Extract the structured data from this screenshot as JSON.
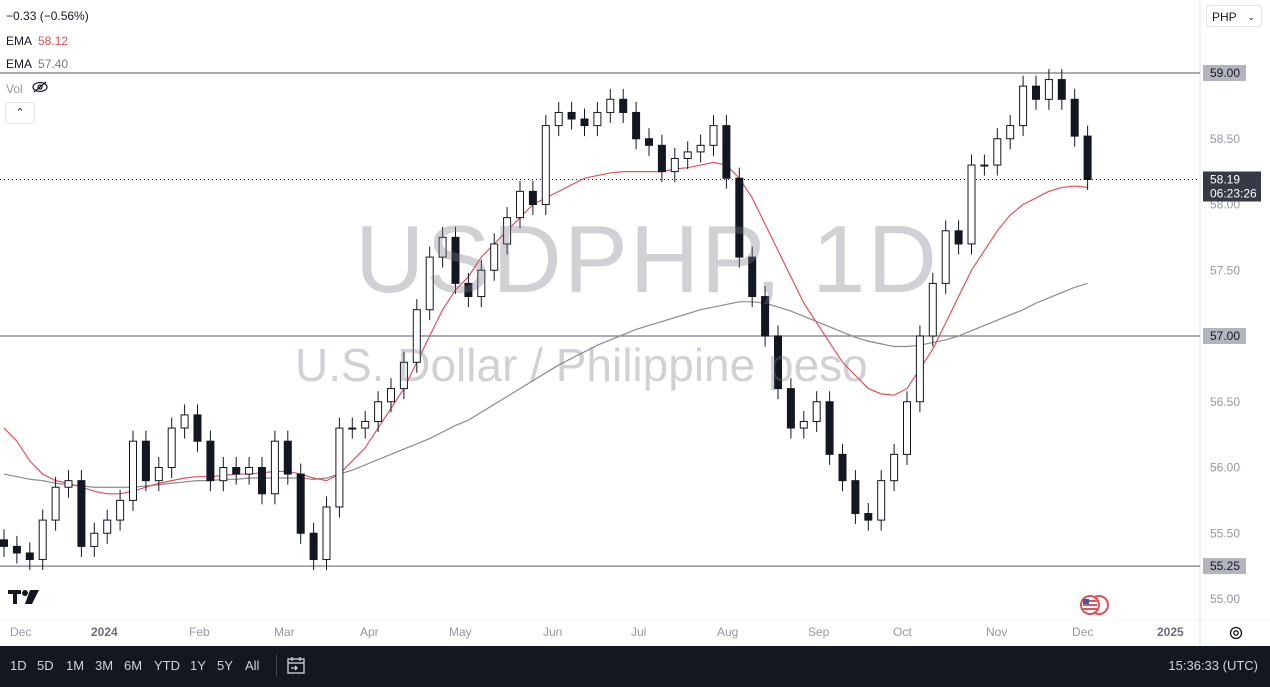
{
  "header": {
    "change": "−0.33 (−0.56%)",
    "ema1_label": "EMA",
    "ema1_value": "58.12",
    "ema2_label": "EMA",
    "ema2_value": "57.40",
    "vol_label": "Vol",
    "vol_icon": "eye-off-icon",
    "collapse_icon": "chevron-up-icon"
  },
  "symbol_select": {
    "value": "PHP"
  },
  "watermark": {
    "title": "USDPHP, 1D",
    "subtitle": "U.S. Dollar / Philippine peso"
  },
  "price_axis": {
    "ticks": [
      "59.00",
      "58.50",
      "58.00",
      "57.50",
      "57.00",
      "56.50",
      "56.00",
      "55.50",
      "55.25",
      "55.00"
    ],
    "last_price": "58.19",
    "countdown": "06:23:26",
    "highlight_levels": [
      "59.00",
      "57.00",
      "55.25"
    ]
  },
  "time_axis": {
    "ticks": [
      "Dec",
      "2024",
      "Feb",
      "Mar",
      "Apr",
      "May",
      "Jun",
      "Jul",
      "Aug",
      "Sep",
      "Oct",
      "Nov",
      "Dec",
      "2025"
    ]
  },
  "bottom_bar": {
    "ranges": [
      "1D",
      "5D",
      "1M",
      "3M",
      "6M",
      "YTD",
      "1Y",
      "5Y",
      "All"
    ],
    "calendar_icon": "calendar-goto-icon",
    "clock": "15:36:33 (UTC)"
  },
  "colors": {
    "up": "#131722",
    "down": "#131722",
    "ema_fast": "#e0525a",
    "ema_slow": "#8a8a8a",
    "level_line": "#787b86",
    "bottom_bg": "#131722"
  },
  "chart_data": {
    "type": "candlestick",
    "ylim": [
      54.9,
      59.2
    ],
    "horizontal_levels": [
      59.0,
      57.0,
      55.25
    ],
    "last_price": 58.19,
    "closes": [
      55.4,
      55.35,
      55.3,
      55.6,
      55.85,
      55.9,
      55.4,
      55.5,
      55.6,
      55.75,
      56.2,
      55.9,
      56.0,
      56.3,
      56.4,
      56.2,
      55.9,
      56.0,
      55.95,
      56.0,
      55.8,
      56.2,
      55.95,
      55.5,
      55.3,
      55.7,
      56.3,
      56.3,
      56.35,
      56.5,
      56.6,
      56.8,
      57.2,
      57.6,
      57.75,
      57.4,
      57.3,
      57.5,
      57.7,
      57.9,
      58.1,
      58.0,
      58.6,
      58.7,
      58.65,
      58.6,
      58.7,
      58.8,
      58.7,
      58.5,
      58.45,
      58.25,
      58.35,
      58.4,
      58.45,
      58.6,
      58.2,
      57.6,
      57.3,
      57.0,
      56.6,
      56.3,
      56.35,
      56.5,
      56.1,
      55.9,
      55.65,
      55.6,
      55.9,
      56.1,
      56.5,
      57.0,
      57.4,
      57.8,
      57.7,
      58.3,
      58.3,
      58.5,
      58.6,
      58.9,
      58.8,
      58.95,
      58.8,
      58.52,
      58.19
    ],
    "ema_fast": [
      56.3,
      56.2,
      56.05,
      55.95,
      55.9,
      55.88,
      55.85,
      55.82,
      55.8,
      55.8,
      55.82,
      55.85,
      55.88,
      55.9,
      55.92,
      55.93,
      55.93,
      55.94,
      55.95,
      55.95,
      55.96,
      55.97,
      55.97,
      55.95,
      55.92,
      55.9,
      55.95,
      56.05,
      56.15,
      56.3,
      56.45,
      56.6,
      56.8,
      57.0,
      57.2,
      57.35,
      57.45,
      57.6,
      57.7,
      57.8,
      57.9,
      58.0,
      58.05,
      58.1,
      58.15,
      58.2,
      58.22,
      58.24,
      58.25,
      58.25,
      58.25,
      58.25,
      58.27,
      58.28,
      58.3,
      58.32,
      58.3,
      58.2,
      58.05,
      57.85,
      57.65,
      57.45,
      57.25,
      57.1,
      56.95,
      56.8,
      56.7,
      56.6,
      56.56,
      56.55,
      56.6,
      56.75,
      56.9,
      57.1,
      57.3,
      57.5,
      57.65,
      57.8,
      57.92,
      58.0,
      58.05,
      58.1,
      58.13,
      58.14,
      58.13
    ],
    "ema_slow": [
      55.95,
      55.93,
      55.91,
      55.9,
      55.88,
      55.87,
      55.86,
      55.85,
      55.85,
      55.85,
      55.85,
      55.86,
      55.87,
      55.88,
      55.89,
      55.9,
      55.9,
      55.91,
      55.91,
      55.92,
      55.92,
      55.92,
      55.92,
      55.92,
      55.91,
      55.92,
      55.95,
      55.98,
      56.02,
      56.06,
      56.1,
      56.14,
      56.18,
      56.22,
      56.27,
      56.32,
      56.36,
      56.42,
      56.48,
      56.54,
      56.6,
      56.66,
      56.72,
      56.78,
      56.83,
      56.88,
      56.93,
      56.97,
      57.01,
      57.05,
      57.08,
      57.11,
      57.14,
      57.17,
      57.2,
      57.22,
      57.24,
      57.26,
      57.26,
      57.25,
      57.22,
      57.19,
      57.15,
      57.11,
      57.07,
      57.03,
      56.99,
      56.96,
      56.94,
      56.92,
      56.92,
      56.93,
      56.95,
      56.97,
      57.0,
      57.04,
      57.08,
      57.12,
      57.16,
      57.2,
      57.25,
      57.29,
      57.33,
      57.37,
      57.4
    ]
  }
}
